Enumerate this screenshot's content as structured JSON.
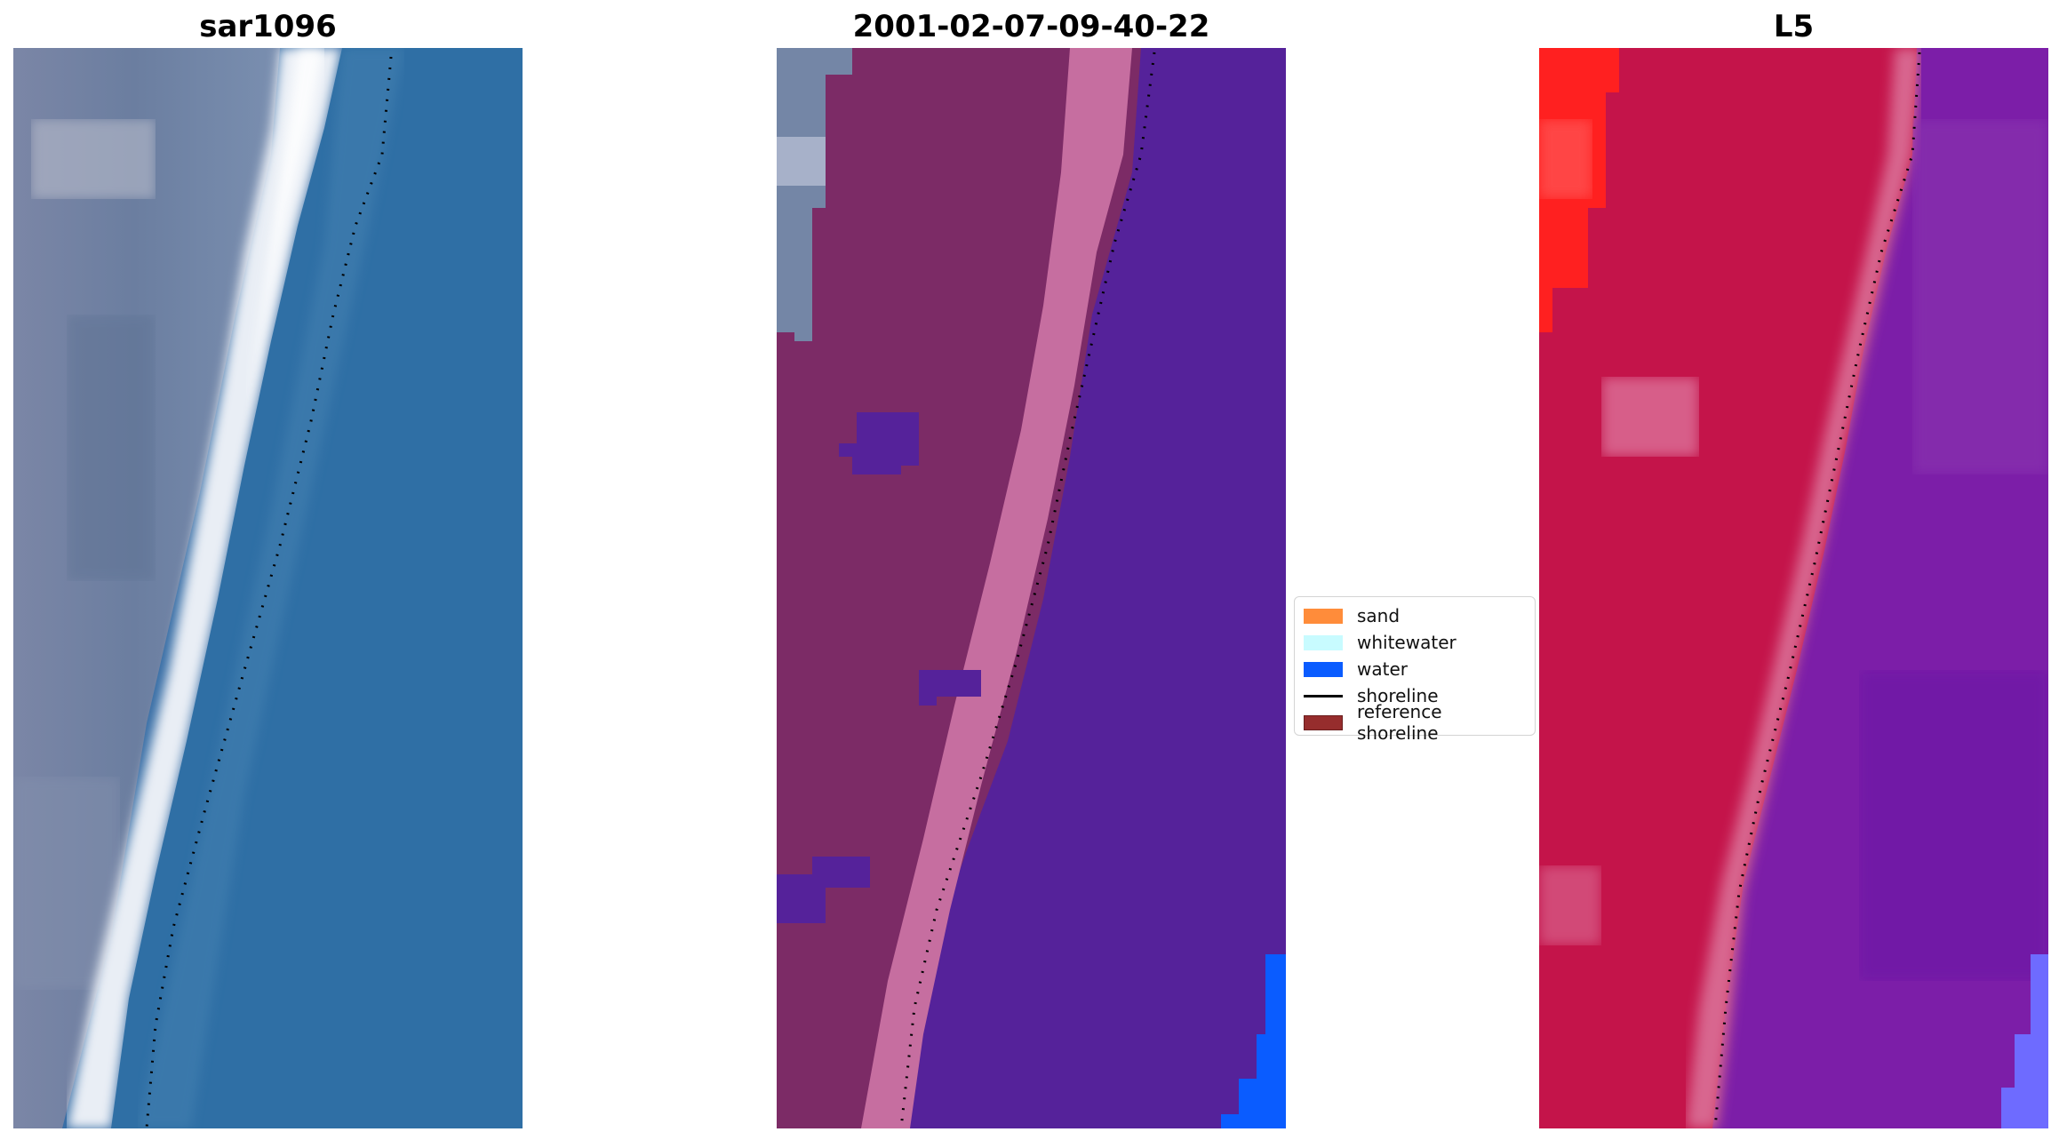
{
  "panels": [
    {
      "title": "sar1096"
    },
    {
      "title": "2001-02-07-09-40-22"
    },
    {
      "title": "L5"
    }
  ],
  "legend": {
    "items": [
      {
        "label": "sand",
        "color": "#ff8c3a",
        "kind": "patch"
      },
      {
        "label": "whitewater",
        "color": "#c8fbff",
        "kind": "patch"
      },
      {
        "label": "water",
        "color": "#0a5cff",
        "kind": "patch"
      },
      {
        "label": "shoreline",
        "color": "#000000",
        "kind": "line"
      },
      {
        "label": "reference shoreline",
        "color": "#962d2d",
        "kind": "patch"
      }
    ]
  }
}
